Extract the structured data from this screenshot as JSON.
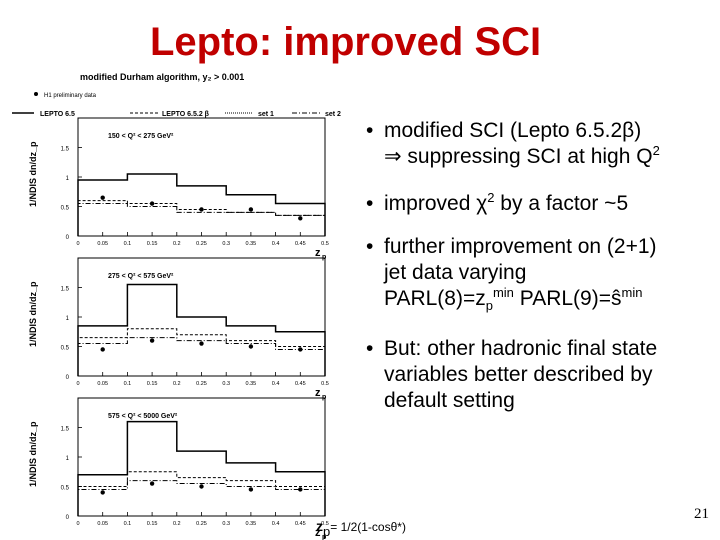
{
  "slide": {
    "title": "Lepto: improved SCI",
    "page_number": "21"
  },
  "figure": {
    "header": "modified Durham algorithm, y₂ > 0.001",
    "legend": {
      "data": "H1 preliminary data",
      "lepto": "LEPTO 6.5",
      "lepto2": "LEPTO 6.5.2 β",
      "set1": "set 1",
      "set2": "set 2"
    },
    "ylabel": "1/N_DIS dn/dz_p",
    "xlabel": "z_p",
    "formula": "= 1/2(1-cosθ*)",
    "xticks": [
      "0",
      "0.05",
      "0.1",
      "0.15",
      "0.2",
      "0.25",
      "0.3",
      "0.35",
      "0.4",
      "0.45",
      "0.5"
    ],
    "yticks": [
      "0",
      "0.5",
      "1",
      "1.5"
    ]
  },
  "chart_data": [
    {
      "type": "bar",
      "title": "150 < Q² < 275 GeV²",
      "categories": [
        "0-0.1",
        "0.1-0.2",
        "0.2-0.3",
        "0.3-0.4",
        "0.4-0.5"
      ],
      "series": [
        {
          "name": "H1 preliminary data",
          "values": [
            0.65,
            0.55,
            0.45,
            0.45,
            0.3
          ]
        },
        {
          "name": "LEPTO 6.5",
          "values": [
            0.95,
            1.05,
            0.85,
            0.7,
            0.55
          ]
        },
        {
          "name": "LEPTO 6.5.2 β",
          "values": [
            0.6,
            0.55,
            0.45,
            0.4,
            0.35
          ]
        },
        {
          "name": "set 2",
          "values": [
            0.55,
            0.5,
            0.4,
            0.4,
            0.35
          ]
        }
      ],
      "ylim": [
        0,
        2
      ],
      "xlim": [
        0,
        0.5
      ],
      "xlabel": "z_p",
      "ylabel": "1/N_DIS dn/dz_p"
    },
    {
      "type": "bar",
      "title": "275 < Q² < 575 GeV²",
      "categories": [
        "0-0.1",
        "0.1-0.2",
        "0.2-0.3",
        "0.3-0.4",
        "0.4-0.5"
      ],
      "series": [
        {
          "name": "H1 preliminary data",
          "values": [
            0.45,
            0.6,
            0.55,
            0.5,
            0.45
          ]
        },
        {
          "name": "LEPTO 6.5",
          "values": [
            0.85,
            1.55,
            1.0,
            0.85,
            0.75
          ]
        },
        {
          "name": "LEPTO 6.5.2 β",
          "values": [
            0.65,
            0.8,
            0.7,
            0.6,
            0.5
          ]
        },
        {
          "name": "set 2",
          "values": [
            0.55,
            0.65,
            0.6,
            0.55,
            0.45
          ]
        }
      ],
      "ylim": [
        0,
        2
      ],
      "xlim": [
        0,
        0.5
      ],
      "xlabel": "z_p",
      "ylabel": "1/N_DIS dn/dz_p"
    },
    {
      "type": "bar",
      "title": "575 < Q² < 5000 GeV²",
      "categories": [
        "0-0.1",
        "0.1-0.2",
        "0.2-0.3",
        "0.3-0.4",
        "0.4-0.5"
      ],
      "series": [
        {
          "name": "H1 preliminary data",
          "values": [
            0.4,
            0.55,
            0.5,
            0.45,
            0.45
          ]
        },
        {
          "name": "LEPTO 6.5",
          "values": [
            0.7,
            1.6,
            1.1,
            0.9,
            0.75
          ]
        },
        {
          "name": "LEPTO 6.5.2 β",
          "values": [
            0.5,
            0.75,
            0.65,
            0.6,
            0.5
          ]
        },
        {
          "name": "set 2",
          "values": [
            0.45,
            0.6,
            0.55,
            0.5,
            0.45
          ]
        }
      ],
      "ylim": [
        0,
        2
      ],
      "xlim": [
        0,
        0.5
      ],
      "xlabel": "z_p",
      "ylabel": "1/N_DIS dn/dz_p"
    }
  ],
  "bullets": {
    "b1_line1": "modified SCI (Lepto 6.5.2β)",
    "b1_line2_pre": "⇒ suppressing SCI at high Q",
    "b1_line2_sup": "2",
    "b2_pre": "improved χ",
    "b2_sup": "2",
    "b2_post": " by a factor ~5",
    "b3_line1": "further improvement on (2+1)",
    "b3_line2": "jet data varying",
    "b3_line3_a": "PARL(8)=z",
    "b3_line3_sub": "p",
    "b3_line3_sup": "min",
    "b3_line3_b": "  PARL(9)=ŝ",
    "b3_line3_sup2": "min",
    "b4_line1": "But: other hadronic final state",
    "b4_line2": "variables better described by",
    "b4_line3": "default setting"
  }
}
